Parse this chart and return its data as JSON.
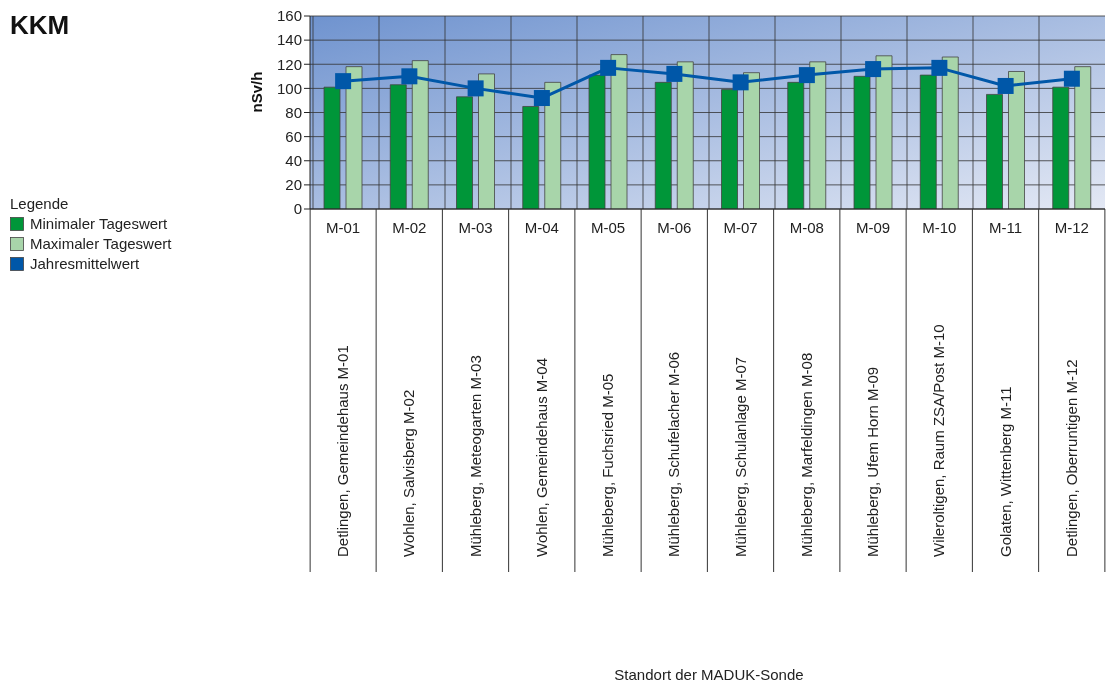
{
  "chart_data": {
    "type": "bar",
    "title": "KKM",
    "ylabel": "nSv/h",
    "legend_title": "Legende",
    "categories": [
      "M-01",
      "M-02",
      "M-03",
      "M-04",
      "M-05",
      "M-06",
      "M-07",
      "M-08",
      "M-09",
      "M-10",
      "M-11",
      "M-12"
    ],
    "series": [
      {
        "name": "Minimaler Tageswert",
        "color": "#009639",
        "values": [
          101,
          103,
          93,
          85,
          111,
          105,
          99,
          105,
          110,
          111,
          95,
          101
        ]
      },
      {
        "name": "Maximaler Tageswert",
        "color": "#a8d5aa",
        "values": [
          118,
          123,
          112,
          105,
          128,
          122,
          113,
          122,
          127,
          126,
          114,
          118
        ]
      },
      {
        "name": "Jahresmittelwert",
        "type": "line",
        "marker": "square",
        "color": "#0057a8",
        "values": [
          106,
          110,
          100,
          92,
          117,
          112,
          105,
          111,
          116,
          117,
          102,
          108
        ]
      }
    ],
    "annotations": [
      "Detlingen, Gemeindehaus M-01",
      "Wohlen, Salvisberg M-02",
      "Mühleberg, Meteogarten M-03",
      "Wohlen, Gemeindehaus M-04",
      "Mühleberg, Fuchsried M-05",
      "Mühleberg, Schufelacher M-06",
      "Mühleberg, Schulanlage M-07",
      "Mühleberg, Marfeldingen M-08",
      "Mühleberg, Ufem Horn M-09",
      "Wileroltigen, Raum ZSA/Post M-10",
      "Golaten, Wittenberg M-11",
      "Detlingen, Oberruntigen M-12",
      "Standort der MADUK-Sonde"
    ],
    "ylim": [
      0,
      160
    ],
    "yticks": [
      0,
      20,
      40,
      60,
      80,
      100,
      120,
      140,
      160
    ],
    "grid": true,
    "legend": "left"
  }
}
